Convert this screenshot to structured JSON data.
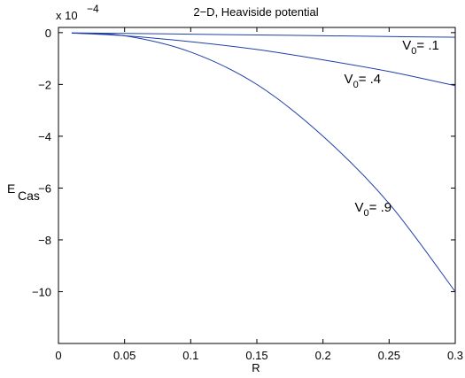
{
  "chart_data": {
    "type": "line",
    "title": "2−D,   Heaviside potential",
    "xlabel": "R",
    "ylabel": "E",
    "ylabel_sub": "Cas",
    "exponent_label": "x 10",
    "exponent_power": "−4",
    "scale": 0.0001,
    "xlim": [
      0,
      0.3
    ],
    "ylim": [
      -12,
      0.2
    ],
    "x_ticks": [
      0,
      0.05,
      0.1,
      0.15,
      0.2,
      0.25,
      0.3
    ],
    "x_tick_labels": [
      "0",
      "0.05",
      "0.1",
      "0.15",
      "0.2",
      "0.25",
      "0.3"
    ],
    "y_ticks": [
      0,
      -2,
      -4,
      -6,
      -8,
      -10
    ],
    "y_tick_labels": [
      "0",
      "−2",
      "−4",
      "−6",
      "−8",
      "−10"
    ],
    "grid": false,
    "legend": "none",
    "series_color": "#1f3fa8",
    "series": [
      {
        "x": [
          0.01,
          0.05,
          0.1,
          0.15,
          0.2,
          0.25,
          0.3
        ],
        "y": [
          -0.01,
          -0.03,
          -0.06,
          -0.09,
          -0.12,
          -0.15,
          -0.18
        ]
      },
      {
        "x": [
          0.01,
          0.05,
          0.1,
          0.15,
          0.2,
          0.25,
          0.3
        ],
        "y": [
          -0.02,
          -0.12,
          -0.35,
          -0.65,
          -1.05,
          -1.5,
          -2.05
        ]
      },
      {
        "x": [
          0.01,
          0.05,
          0.1,
          0.15,
          0.2,
          0.25,
          0.3
        ],
        "y": [
          -0.02,
          -0.12,
          -0.75,
          -2.0,
          -4.0,
          -6.6,
          -10.0
        ]
      }
    ],
    "annotations": [
      {
        "base": "V",
        "sub": "0",
        "text": "= .1",
        "x": 0.26,
        "y": -0.65
      },
      {
        "base": "V",
        "sub": "0",
        "text": "= .4",
        "x": 0.216,
        "y": -1.95
      },
      {
        "base": "V",
        "sub": "0",
        "text": "= .9",
        "x": 0.224,
        "y": -6.9
      }
    ]
  }
}
